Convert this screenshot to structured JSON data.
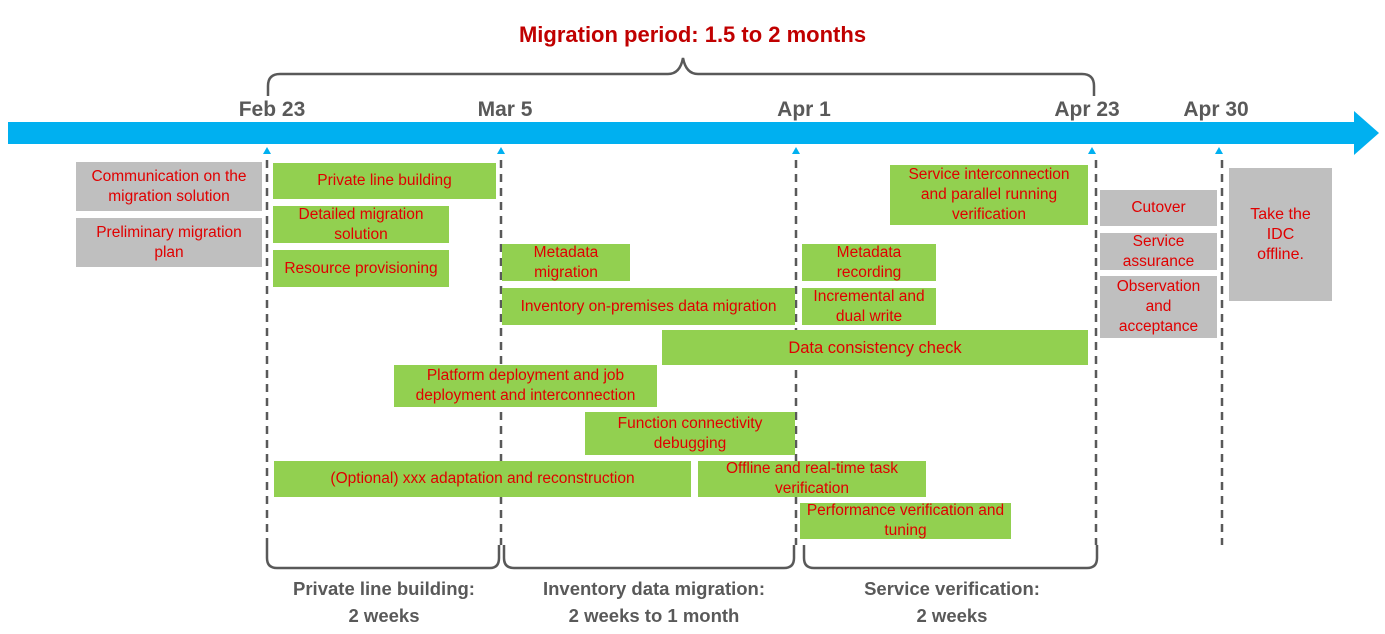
{
  "title": "Migration period: 1.5 to 2 months",
  "dates": [
    "Feb 23",
    "Mar 5",
    "Apr 1",
    "Apr 23",
    "Apr 30"
  ],
  "tasks": {
    "communication": "Communication on the migration solution",
    "preliminary_plan": "Preliminary migration plan",
    "private_line_building": "Private line building",
    "detailed_solution": "Detailed migration solution",
    "resource_provisioning": "Resource provisioning",
    "metadata_migration": "Metadata migration",
    "inventory_data_migration": "Inventory on-premises data migration",
    "platform_deployment": "Platform deployment and job deployment and interconnection",
    "function_debugging": "Function connectivity debugging",
    "optional_adaptation": "(Optional) xxx adaptation and reconstruction",
    "offline_realtime": "Offline and real-time task verification",
    "service_interconnection": "Service interconnection and parallel running verification",
    "metadata_recording": "Metadata recording",
    "incremental_dual_write": "Incremental and dual write",
    "data_consistency_check": "Data consistency check",
    "performance_tuning": "Performance verification and tuning",
    "cutover": "Cutover",
    "service_assurance": "Service assurance",
    "observation_acceptance": "Observation and acceptance",
    "take_offline": "Take the IDC offline."
  },
  "phases": {
    "private_line": {
      "line1": "Private line building:",
      "line2": "2 weeks"
    },
    "inventory": {
      "line1": "Inventory data migration:",
      "line2": "2 weeks to 1 month"
    },
    "service": {
      "line1": "Service verification:",
      "line2": "2 weeks"
    }
  },
  "colors": {
    "timeline": "#00b0f0",
    "task_green": "#92d050",
    "task_grey": "#bfbfbf",
    "text_red": "#e00000",
    "title_red": "#c00000",
    "bracket": "#595959"
  }
}
